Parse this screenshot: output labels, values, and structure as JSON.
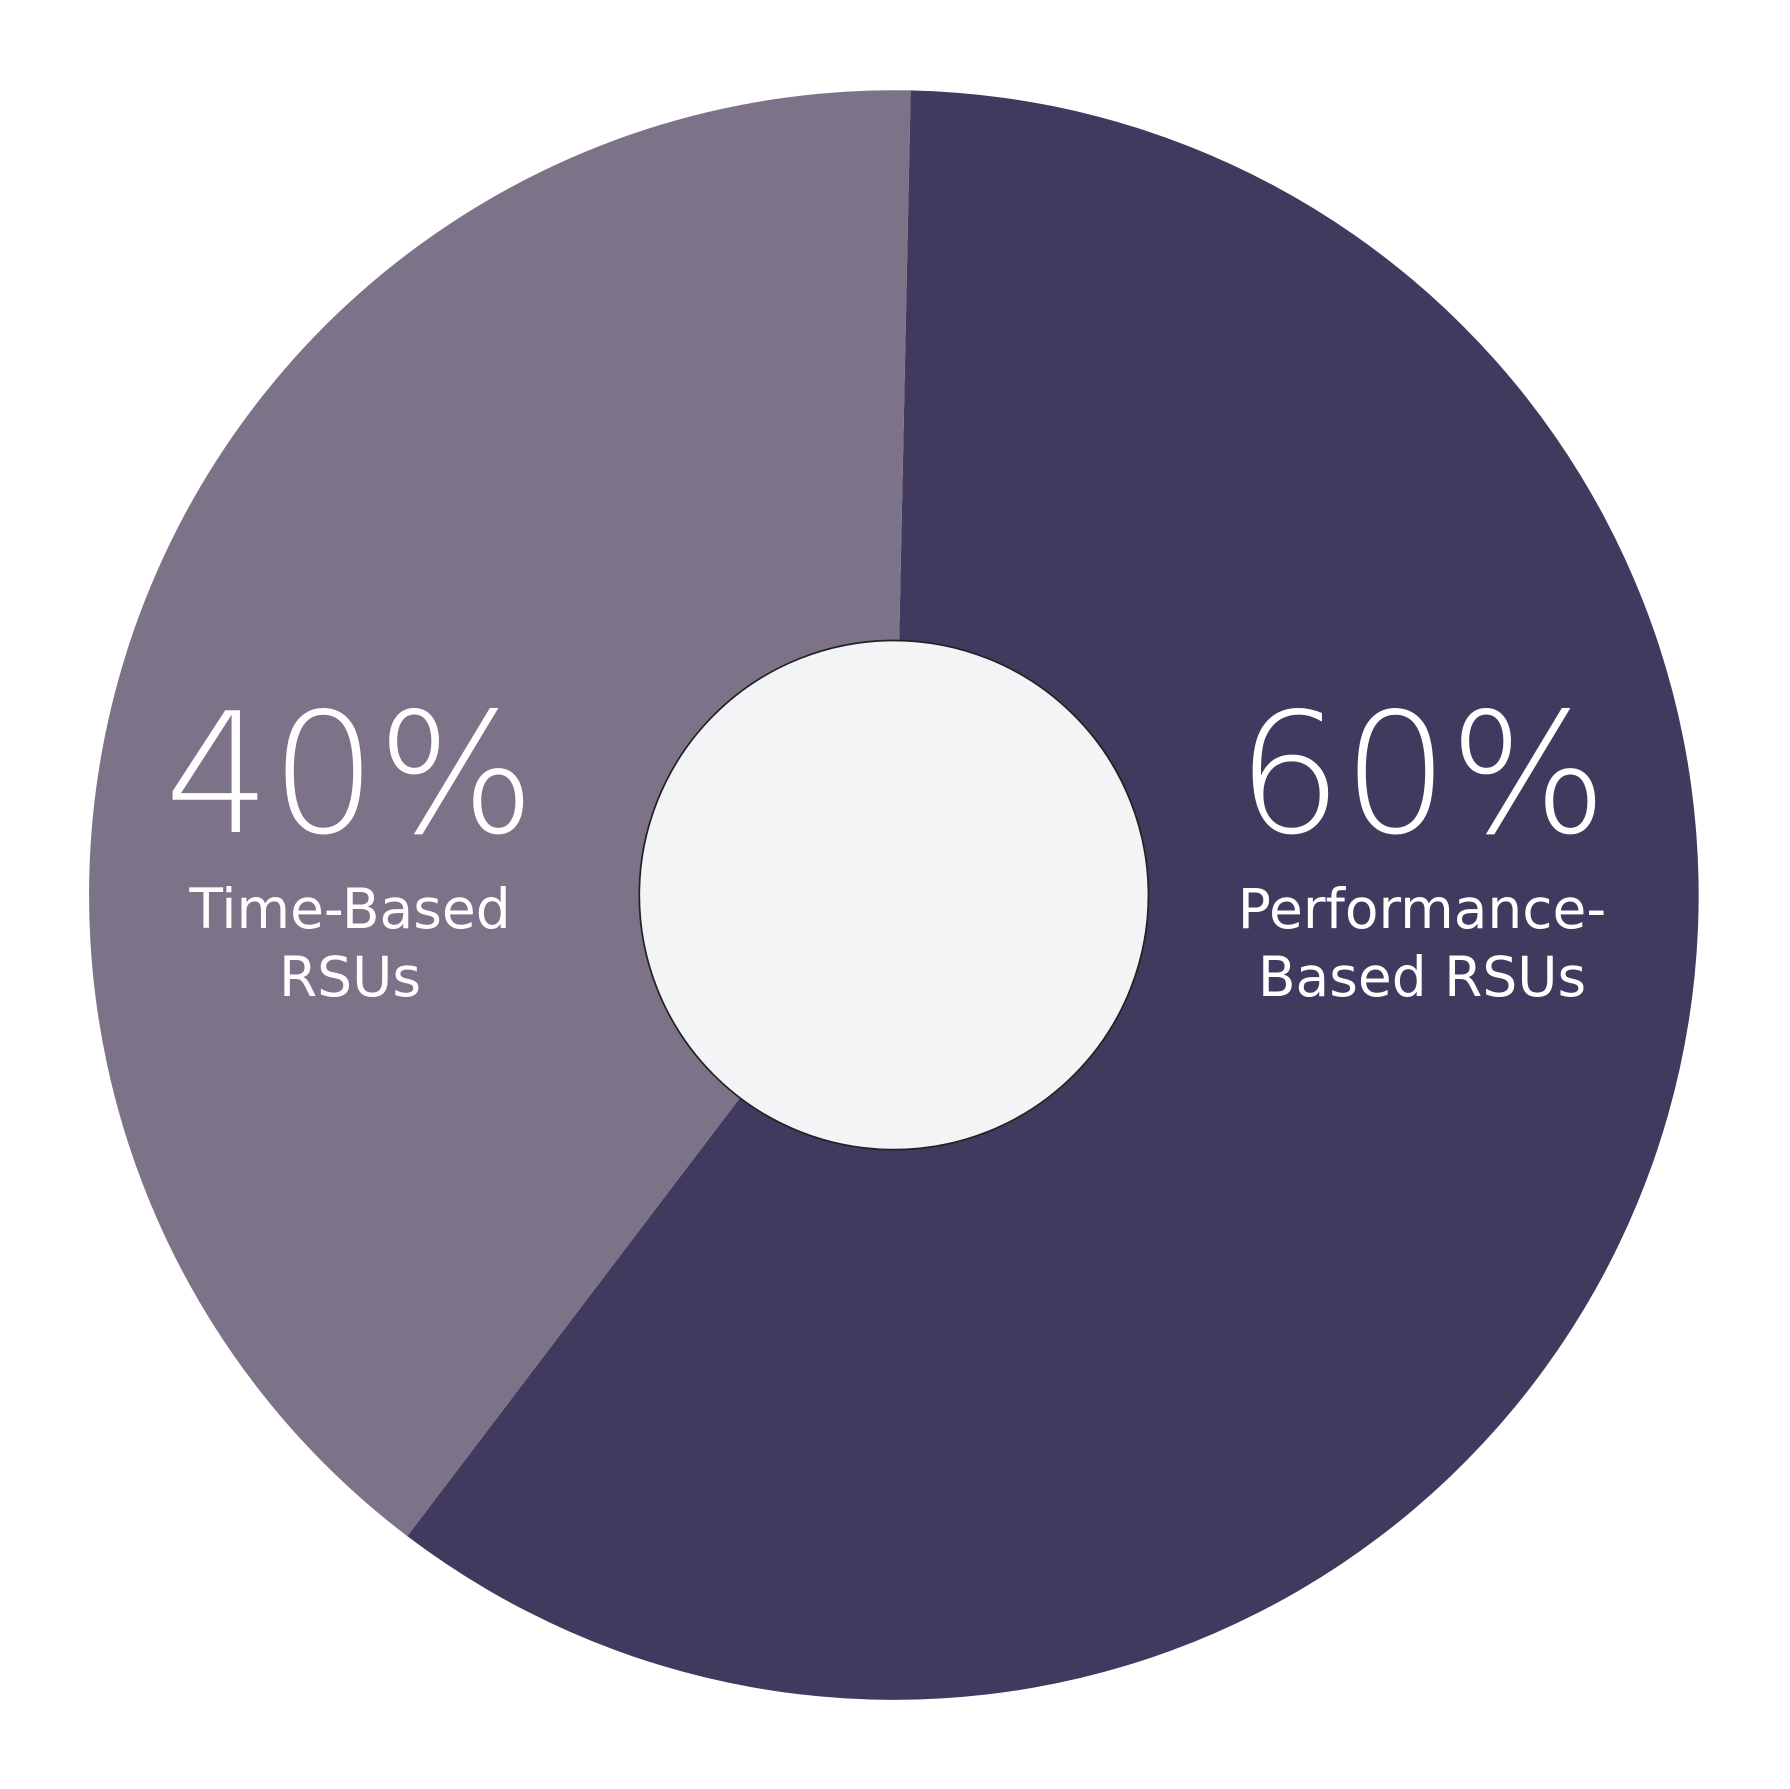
{
  "chart_data": {
    "type": "pie",
    "donut": true,
    "start_angle_deg": 1.2,
    "slices": [
      {
        "label_lines": [
          "Performance-",
          "Based RSUs"
        ],
        "value": 60,
        "value_label": "60%",
        "color": "#413a5f"
      },
      {
        "label_lines": [
          "Time-Based",
          "RSUs"
        ],
        "value": 40,
        "value_label": "40%",
        "color": "#7c7389"
      }
    ],
    "hole_color": "#f2f4f6",
    "legend": "none"
  }
}
